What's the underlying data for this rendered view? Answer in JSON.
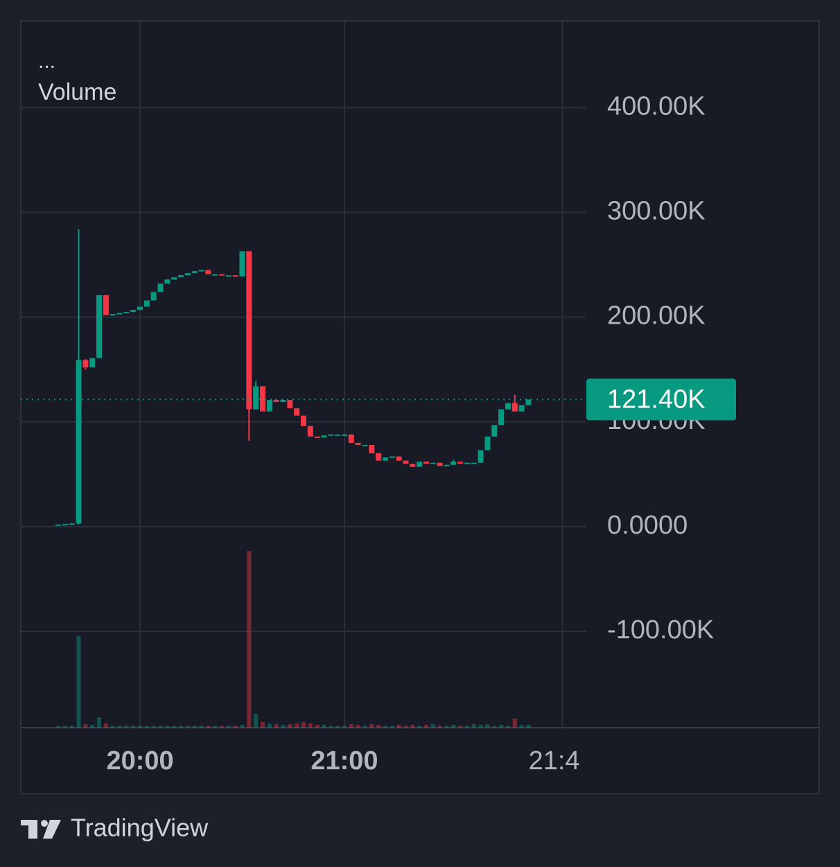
{
  "chart_data": {
    "type": "candlestick",
    "legend_menu": "...",
    "volume_label": "Volume",
    "brand": "TradingView",
    "up_color": "#089981",
    "down_color": "#f23645",
    "grid": true,
    "xlim": [
      1165,
      1331
    ],
    "ylim": [
      -192000,
      483000
    ],
    "xticks": [
      {
        "value": 1200,
        "label": "20:00"
      },
      {
        "value": 1260,
        "label": "21:00"
      },
      {
        "value": 1324,
        "label": "21:4"
      }
    ],
    "yticks": [
      {
        "value": 400000,
        "label": "400.00K"
      },
      {
        "value": 300000,
        "label": "300.00K"
      },
      {
        "value": 200000,
        "label": "200.00K"
      },
      {
        "value": 100000,
        "label": "100.00K"
      },
      {
        "value": 0,
        "label": "0.0000"
      },
      {
        "value": -100000,
        "label": "-100.00K"
      }
    ],
    "last_price": {
      "value": 121400,
      "label": "121.40K"
    },
    "x": [
      1176,
      1178,
      1180,
      1182,
      1184,
      1186,
      1188,
      1190,
      1192,
      1194,
      1196,
      1198,
      1200,
      1202,
      1204,
      1206,
      1208,
      1210,
      1212,
      1214,
      1216,
      1218,
      1220,
      1222,
      1224,
      1226,
      1228,
      1230,
      1232,
      1234,
      1236,
      1238,
      1240,
      1242,
      1244,
      1246,
      1248,
      1250,
      1252,
      1254,
      1256,
      1258,
      1260,
      1262,
      1264,
      1266,
      1268,
      1270,
      1272,
      1274,
      1276,
      1278,
      1280,
      1282,
      1284,
      1286,
      1288,
      1290,
      1292,
      1294,
      1296,
      1298,
      1300,
      1302,
      1304,
      1306,
      1308,
      1310,
      1312,
      1314
    ],
    "open": [
      2000,
      2000,
      2500,
      3000,
      159000,
      152000,
      161000,
      221000,
      202000,
      203000,
      204000,
      205000,
      207000,
      210000,
      216000,
      224000,
      232000,
      236000,
      238000,
      240000,
      242000,
      244000,
      245000,
      241000,
      241000,
      240000,
      240000,
      239000,
      263000,
      112000,
      134000,
      110000,
      121000,
      119000,
      121000,
      113000,
      106000,
      96000,
      86000,
      85000,
      87000,
      88000,
      88000,
      88000,
      80000,
      78000,
      78000,
      70000,
      63000,
      66000,
      67000,
      63000,
      60000,
      57000,
      62000,
      60000,
      61000,
      58000,
      59000,
      62000,
      60000,
      61000,
      61000,
      73000,
      86000,
      97000,
      112000,
      118000,
      110000,
      116000
    ],
    "high": [
      2000,
      2500,
      3000,
      284000,
      160000,
      161000,
      221000,
      221000,
      203000,
      204000,
      205000,
      207000,
      210000,
      216000,
      224000,
      232000,
      236000,
      238000,
      240000,
      242000,
      244000,
      245000,
      245000,
      241000,
      241000,
      240000,
      240000,
      263000,
      263000,
      139000,
      134000,
      121000,
      122000,
      121000,
      121000,
      113000,
      106000,
      96000,
      86000,
      87000,
      88000,
      88000,
      88000,
      88000,
      80000,
      78000,
      78000,
      70000,
      66000,
      67000,
      67000,
      63000,
      60000,
      62000,
      62000,
      61000,
      61000,
      59000,
      64000,
      62000,
      61000,
      61000,
      73000,
      86000,
      97000,
      112000,
      118000,
      126000,
      116000,
      121400
    ],
    "low": [
      2000,
      2000,
      2500,
      2000,
      150000,
      152000,
      161000,
      202000,
      202000,
      203000,
      204000,
      205000,
      207000,
      210000,
      216000,
      224000,
      232000,
      236000,
      238000,
      240000,
      242000,
      244000,
      241000,
      241000,
      240000,
      240000,
      239000,
      239000,
      82000,
      112000,
      110000,
      110000,
      119000,
      119000,
      113000,
      106000,
      96000,
      86000,
      85000,
      85000,
      87000,
      88000,
      88000,
      80000,
      78000,
      78000,
      70000,
      63000,
      63000,
      66000,
      63000,
      60000,
      57000,
      57000,
      60000,
      60000,
      58000,
      58000,
      59000,
      60000,
      60000,
      61000,
      61000,
      73000,
      86000,
      97000,
      112000,
      110000,
      110000,
      116000
    ],
    "close": [
      2000,
      2500,
      3000,
      159000,
      152000,
      161000,
      221000,
      202000,
      203000,
      204000,
      205000,
      207000,
      210000,
      216000,
      224000,
      232000,
      236000,
      238000,
      240000,
      242000,
      244000,
      245000,
      241000,
      241000,
      240000,
      240000,
      239000,
      263000,
      112000,
      134000,
      110000,
      121000,
      119000,
      121000,
      113000,
      106000,
      96000,
      86000,
      85000,
      87000,
      88000,
      88000,
      88000,
      80000,
      78000,
      78000,
      70000,
      63000,
      66000,
      67000,
      63000,
      60000,
      57000,
      62000,
      60000,
      61000,
      58000,
      59000,
      62000,
      60000,
      61000,
      61000,
      73000,
      86000,
      97000,
      112000,
      118000,
      110000,
      116000,
      121400
    ],
    "volume": [
      3,
      3,
      3,
      132,
      5,
      4,
      15,
      6,
      3,
      3,
      3,
      3,
      3,
      3,
      3,
      3,
      3,
      3,
      3,
      3,
      3,
      3,
      3,
      3,
      3,
      3,
      3,
      4,
      255,
      20,
      8,
      6,
      5,
      4,
      5,
      6,
      8,
      6,
      4,
      4,
      3,
      3,
      3,
      5,
      4,
      3,
      5,
      4,
      3,
      3,
      4,
      3,
      4,
      3,
      4,
      5,
      3,
      3,
      4,
      3,
      3,
      5,
      4,
      5,
      3,
      4,
      3,
      13,
      4,
      4
    ]
  }
}
